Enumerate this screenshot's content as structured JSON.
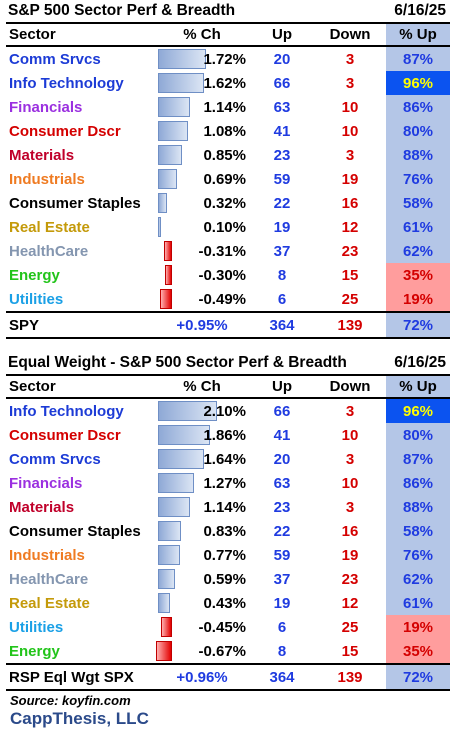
{
  "table1": {
    "title": "S&P 500 Sector Perf & Breadth",
    "date": "6/16/25",
    "headers": [
      "Sector",
      "% Ch",
      "Up",
      "Down",
      "% Up"
    ],
    "rows": [
      {
        "sector": "Comm Srvcs",
        "color": "#1c3bd6",
        "ch": "1.72%",
        "ch_value": 1.72,
        "up": "20",
        "down": "3",
        "pct": "87%",
        "pct_style": "blue"
      },
      {
        "sector": "Info Technology",
        "color": "#1c3bd6",
        "ch": "1.62%",
        "ch_value": 1.62,
        "up": "66",
        "down": "3",
        "pct": "96%",
        "pct_style": "hi"
      },
      {
        "sector": "Financials",
        "color": "#9b30e0",
        "ch": "1.14%",
        "ch_value": 1.14,
        "up": "63",
        "down": "10",
        "pct": "86%",
        "pct_style": "blue"
      },
      {
        "sector": "Consumer Dscr",
        "color": "#d40000",
        "ch": "1.08%",
        "ch_value": 1.08,
        "up": "41",
        "down": "10",
        "pct": "80%",
        "pct_style": "blue"
      },
      {
        "sector": "Materials",
        "color": "#c0002a",
        "ch": "0.85%",
        "ch_value": 0.85,
        "up": "23",
        "down": "3",
        "pct": "88%",
        "pct_style": "blue"
      },
      {
        "sector": "Industrials",
        "color": "#ef7b22",
        "ch": "0.69%",
        "ch_value": 0.69,
        "up": "59",
        "down": "19",
        "pct": "76%",
        "pct_style": "blue"
      },
      {
        "sector": "Consumer Staples",
        "color": "#000000",
        "ch": "0.32%",
        "ch_value": 0.32,
        "up": "22",
        "down": "16",
        "pct": "58%",
        "pct_style": "blue"
      },
      {
        "sector": "Real Estate",
        "color": "#c49a0a",
        "ch": "0.10%",
        "ch_value": 0.1,
        "up": "19",
        "down": "12",
        "pct": "61%",
        "pct_style": "blue"
      },
      {
        "sector": "HealthCare",
        "color": "#8496b0",
        "ch": "-0.31%",
        "ch_value": -0.31,
        "up": "37",
        "down": "23",
        "pct": "62%",
        "pct_style": "blue"
      },
      {
        "sector": "Energy",
        "color": "#22c41a",
        "ch": "-0.30%",
        "ch_value": -0.3,
        "up": "8",
        "down": "15",
        "pct": "35%",
        "pct_style": "lo"
      },
      {
        "sector": "Utilities",
        "color": "#1aa0e6",
        "ch": "-0.49%",
        "ch_value": -0.49,
        "up": "6",
        "down": "25",
        "pct": "19%",
        "pct_style": "lo"
      }
    ],
    "total": {
      "label": "SPY",
      "ch": "+0.95%",
      "up": "364",
      "down": "139",
      "pct": "72%"
    }
  },
  "table2": {
    "title": "Equal Weight - S&P 500 Sector Perf & Breadth",
    "date": "6/16/25",
    "headers": [
      "Sector",
      "% Ch",
      "Up",
      "Down",
      "% Up"
    ],
    "rows": [
      {
        "sector": "Info Technology",
        "color": "#1c3bd6",
        "ch": "2.10%",
        "ch_value": 2.1,
        "up": "66",
        "down": "3",
        "pct": "96%",
        "pct_style": "hi"
      },
      {
        "sector": "Consumer Dscr",
        "color": "#d40000",
        "ch": "1.86%",
        "ch_value": 1.86,
        "up": "41",
        "down": "10",
        "pct": "80%",
        "pct_style": "blue"
      },
      {
        "sector": "Comm Srvcs",
        "color": "#1c3bd6",
        "ch": "1.64%",
        "ch_value": 1.64,
        "up": "20",
        "down": "3",
        "pct": "87%",
        "pct_style": "blue"
      },
      {
        "sector": "Financials",
        "color": "#9b30e0",
        "ch": "1.27%",
        "ch_value": 1.27,
        "up": "63",
        "down": "10",
        "pct": "86%",
        "pct_style": "blue"
      },
      {
        "sector": "Materials",
        "color": "#c0002a",
        "ch": "1.14%",
        "ch_value": 1.14,
        "up": "23",
        "down": "3",
        "pct": "88%",
        "pct_style": "blue"
      },
      {
        "sector": "Consumer Staples",
        "color": "#000000",
        "ch": "0.83%",
        "ch_value": 0.83,
        "up": "22",
        "down": "16",
        "pct": "58%",
        "pct_style": "blue"
      },
      {
        "sector": "Industrials",
        "color": "#ef7b22",
        "ch": "0.77%",
        "ch_value": 0.77,
        "up": "59",
        "down": "19",
        "pct": "76%",
        "pct_style": "blue"
      },
      {
        "sector": "HealthCare",
        "color": "#8496b0",
        "ch": "0.59%",
        "ch_value": 0.59,
        "up": "37",
        "down": "23",
        "pct": "62%",
        "pct_style": "blue"
      },
      {
        "sector": "Real Estate",
        "color": "#c49a0a",
        "ch": "0.43%",
        "ch_value": 0.43,
        "up": "19",
        "down": "12",
        "pct": "61%",
        "pct_style": "blue"
      },
      {
        "sector": "Utilities",
        "color": "#1aa0e6",
        "ch": "-0.45%",
        "ch_value": -0.45,
        "up": "6",
        "down": "25",
        "pct": "19%",
        "pct_style": "lo"
      },
      {
        "sector": "Energy",
        "color": "#22c41a",
        "ch": "-0.67%",
        "ch_value": -0.67,
        "up": "8",
        "down": "15",
        "pct": "35%",
        "pct_style": "lo"
      }
    ],
    "total": {
      "label": "RSP Eql Wgt SPX",
      "ch": "+0.96%",
      "up": "364",
      "down": "139",
      "pct": "72%"
    }
  },
  "footer": {
    "source": "Source: koyfin.com",
    "brand": "CappThesis, LLC"
  }
}
